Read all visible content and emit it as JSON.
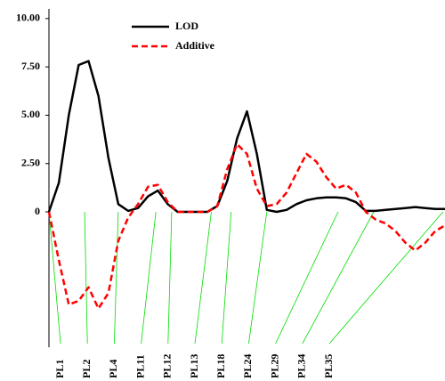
{
  "chart_data": {
    "type": "line",
    "x": [
      0,
      2.5,
      5,
      7.5,
      10,
      12.5,
      15,
      17.5,
      20,
      22.5,
      25,
      27.5,
      30,
      32.5,
      35,
      37.5,
      40,
      42.5,
      45,
      47.5,
      50,
      52.5,
      55,
      57.5,
      60,
      62.5,
      65,
      67.5,
      70,
      72.5,
      75,
      77.5,
      80,
      82.5,
      85,
      87.5,
      90,
      92.5,
      95,
      97.5,
      100
    ],
    "xlim": [
      0,
      100
    ],
    "ylim": [
      -7,
      10.5
    ],
    "yticks": [
      0,
      {
        "value": 2.5,
        "label": "2.50"
      },
      {
        "value": 5,
        "label": "5.00"
      },
      {
        "value": 7.5,
        "label": "7.50"
      },
      {
        "value": 10,
        "label": "10.00"
      }
    ],
    "series": [
      {
        "name": "LOD",
        "color": "#000000",
        "dash": false,
        "values": [
          0,
          1.5,
          5.0,
          7.6,
          7.8,
          6.0,
          2.8,
          0.4,
          0.05,
          0.2,
          0.8,
          1.1,
          0.4,
          0,
          0,
          0,
          0,
          0.3,
          1.6,
          3.8,
          5.2,
          3.0,
          0.1,
          0,
          0.1,
          0.4,
          0.6,
          0.7,
          0.75,
          0.75,
          0.7,
          0.5,
          0.05,
          0.05,
          0.1,
          0.15,
          0.2,
          0.25,
          0.2,
          0.15,
          0.15
        ]
      },
      {
        "name": "Additive",
        "color": "#ff0000",
        "dash": true,
        "values": [
          0,
          -2.5,
          -4.8,
          -4.6,
          -3.9,
          -5.0,
          -4.2,
          -1.5,
          -0.3,
          0.4,
          1.3,
          1.4,
          0.5,
          0,
          0,
          0,
          0,
          0.3,
          2.2,
          3.5,
          3.0,
          1.2,
          0.3,
          0.4,
          1.0,
          2.0,
          3.0,
          2.6,
          1.8,
          1.2,
          1.4,
          1.0,
          0,
          -0.4,
          -0.6,
          -1.0,
          -1.6,
          -2.0,
          -1.6,
          -1.0,
          -0.7
        ]
      }
    ],
    "markers": {
      "color": "#00dd00",
      "names": [
        "PL1",
        "PL2",
        "PL4",
        "PL11",
        "PL12",
        "PL13",
        "PL18",
        "PL24",
        "PL29",
        "PL34",
        "PL35"
      ],
      "positions": [
        0,
        9,
        17.5,
        27,
        31,
        41,
        46,
        55,
        73,
        82,
        99.5
      ]
    }
  }
}
